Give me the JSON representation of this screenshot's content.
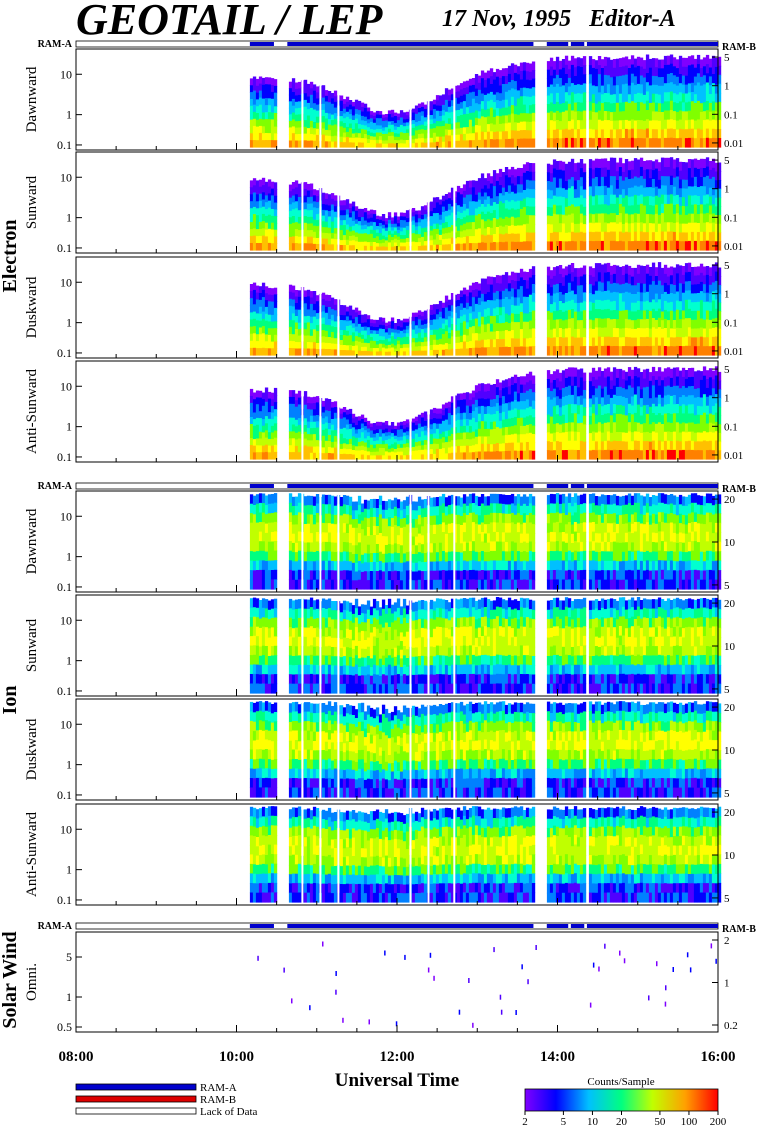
{
  "header": {
    "title": "GEOTAIL / LEP",
    "date": "17 Nov, 1995",
    "editor": "Editor-A"
  },
  "ram_labels": {
    "left": "RAM-A",
    "right": "RAM-B"
  },
  "groups": {
    "electron": {
      "label": "Electron",
      "panels": [
        "Dawnward",
        "Sunward",
        "Duskward",
        "Anti-Sunward"
      ],
      "left_ticks": [
        "10",
        "1",
        "0.1"
      ],
      "right_ticks": [
        "5",
        "1",
        "0.1",
        "0.01"
      ]
    },
    "ion": {
      "label": "Ion",
      "panels": [
        "Dawnward",
        "Sunward",
        "Duskward",
        "Anti-Sunward"
      ],
      "left_ticks": [
        "10",
        "1",
        "0.1"
      ],
      "right_ticks": [
        "20",
        "10",
        "5"
      ]
    },
    "solar_wind": {
      "label": "Solar Wind",
      "panels": [
        "Omni."
      ],
      "left_ticks": [
        "5",
        "1",
        "0.5"
      ],
      "right_ticks": [
        "2",
        "1",
        "0.2"
      ]
    }
  },
  "xaxis": {
    "label": "Universal Time",
    "ticks": [
      "08:00",
      "10:00",
      "12:00",
      "14:00",
      "16:00"
    ]
  },
  "legend": {
    "items": [
      {
        "label": "RAM-A",
        "color": "#0000cc"
      },
      {
        "label": "RAM-B",
        "color": "#dd0000"
      },
      {
        "label": "Lack of Data",
        "color": "#ffffff"
      }
    ]
  },
  "colorbar": {
    "title": "Counts/Sample",
    "ticks": [
      "2",
      "5",
      "10",
      "20",
      "50",
      "100",
      "200"
    ],
    "colors": [
      "#8000ff",
      "#0000ff",
      "#00c0ff",
      "#00ff80",
      "#c0ff00",
      "#ffa000",
      "#ff0000"
    ]
  },
  "chart_data": {
    "type": "heatmap",
    "xlabel": "Universal Time",
    "x_range": [
      "08:00",
      "16:00"
    ],
    "data_gaps_utc": [
      [
        "08:00",
        "10:10"
      ],
      [
        "10:28",
        "10:38"
      ],
      [
        "13:42",
        "13:52"
      ],
      [
        "14:08",
        "14:10"
      ],
      [
        "14:20",
        "14:22"
      ]
    ],
    "color_scale": {
      "label": "Counts/Sample",
      "min": 2,
      "max": 200,
      "log": true
    }
  }
}
